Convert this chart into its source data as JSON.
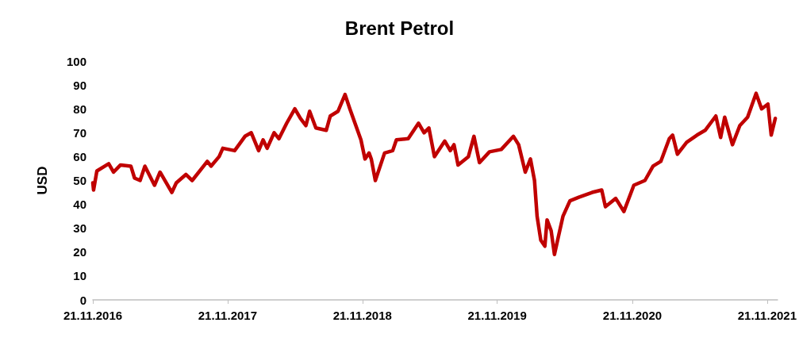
{
  "chart_data": {
    "type": "line",
    "title": "Brent Petrol",
    "ylabel": "USD",
    "x": [
      "2016-11-21",
      "2016-11-23",
      "2016-12-02",
      "2017-01-03",
      "2017-01-16",
      "2017-02-04",
      "2017-03-04",
      "2017-03-14",
      "2017-03-29",
      "2017-04-11",
      "2017-05-07",
      "2017-05-22",
      "2017-06-23",
      "2017-07-05",
      "2017-07-31",
      "2017-08-17",
      "2017-09-27",
      "2017-10-07",
      "2017-10-29",
      "2017-11-08",
      "2017-12-10",
      "2018-01-07",
      "2018-01-24",
      "2018-02-13",
      "2018-02-25",
      "2018-03-08",
      "2018-03-27",
      "2018-04-09",
      "2018-04-30",
      "2018-05-22",
      "2018-06-06",
      "2018-06-21",
      "2018-07-01",
      "2018-07-18",
      "2018-08-15",
      "2018-08-26",
      "2018-09-16",
      "2018-10-05",
      "2018-10-18",
      "2018-11-02",
      "2018-11-17",
      "2018-11-28",
      "2018-12-09",
      "2018-12-15",
      "2018-12-26",
      "2019-01-20",
      "2019-02-11",
      "2019-02-21",
      "2019-03-25",
      "2019-04-22",
      "2019-05-07",
      "2019-05-20",
      "2019-06-04",
      "2019-07-02",
      "2019-07-17",
      "2019-07-27",
      "2019-08-07",
      "2019-09-04",
      "2019-09-19",
      "2019-10-04",
      "2019-10-31",
      "2019-12-02",
      "2020-01-04",
      "2020-01-18",
      "2020-02-05",
      "2020-02-19",
      "2020-03-01",
      "2020-03-08",
      "2020-03-18",
      "2020-03-29",
      "2020-04-04",
      "2020-04-15",
      "2020-04-24",
      "2020-05-04",
      "2020-05-17",
      "2020-06-05",
      "2020-06-29",
      "2020-08-04",
      "2020-08-30",
      "2020-09-09",
      "2020-10-07",
      "2020-10-29",
      "2020-11-25",
      "2020-12-25",
      "2021-01-16",
      "2021-02-06",
      "2021-03-01",
      "2021-03-10",
      "2021-03-23",
      "2021-04-17",
      "2021-05-15",
      "2021-06-06",
      "2021-07-05",
      "2021-07-18",
      "2021-07-29",
      "2021-08-19",
      "2021-09-08",
      "2021-09-29",
      "2021-10-22",
      "2021-11-06",
      "2021-11-23",
      "2021-12-02",
      "2021-12-13"
    ],
    "series": [
      {
        "color": "#c00000",
        "values": [
          49,
          46,
          54,
          57,
          53.5,
          56.5,
          56,
          51,
          50,
          56,
          48,
          53.5,
          45,
          49,
          52.5,
          50,
          58,
          56,
          60,
          63.5,
          62.5,
          68.5,
          70,
          62.5,
          67,
          63.5,
          70,
          67.5,
          74,
          80,
          76,
          73,
          79,
          72,
          71,
          77,
          79,
          86,
          80,
          73.5,
          67,
          59,
          61.5,
          59,
          50,
          61.5,
          62.5,
          67,
          67.5,
          74,
          70,
          72,
          60,
          66.5,
          62.5,
          65,
          56.5,
          60,
          68.5,
          57.5,
          62,
          63,
          68.5,
          65,
          53.5,
          59,
          50,
          35,
          25,
          22.5,
          33.5,
          29,
          19,
          26,
          35,
          41.5,
          43,
          45,
          46,
          39,
          42.5,
          37,
          48,
          50,
          56,
          58,
          67.5,
          69,
          61,
          66,
          69,
          71,
          77,
          68,
          76.5,
          65,
          73,
          76.5,
          86.5,
          80,
          82,
          69,
          76
        ]
      }
    ],
    "xlim": [
      "2016-11-21",
      "2021-12-19"
    ],
    "xticks": [
      {
        "value": "2016-11-21",
        "label": "21.11.2016"
      },
      {
        "value": "2017-11-21",
        "label": "21.11.2017"
      },
      {
        "value": "2018-11-21",
        "label": "21.11.2018"
      },
      {
        "value": "2019-11-21",
        "label": "21.11.2019"
      },
      {
        "value": "2020-11-21",
        "label": "21.11.2020"
      },
      {
        "value": "2021-11-21",
        "label": "21.11.2021"
      }
    ],
    "ylim": [
      0,
      100
    ],
    "yticks": [
      0,
      10,
      20,
      30,
      40,
      50,
      60,
      70,
      80,
      90,
      100
    ],
    "marker": "none",
    "line_style": "solid"
  }
}
